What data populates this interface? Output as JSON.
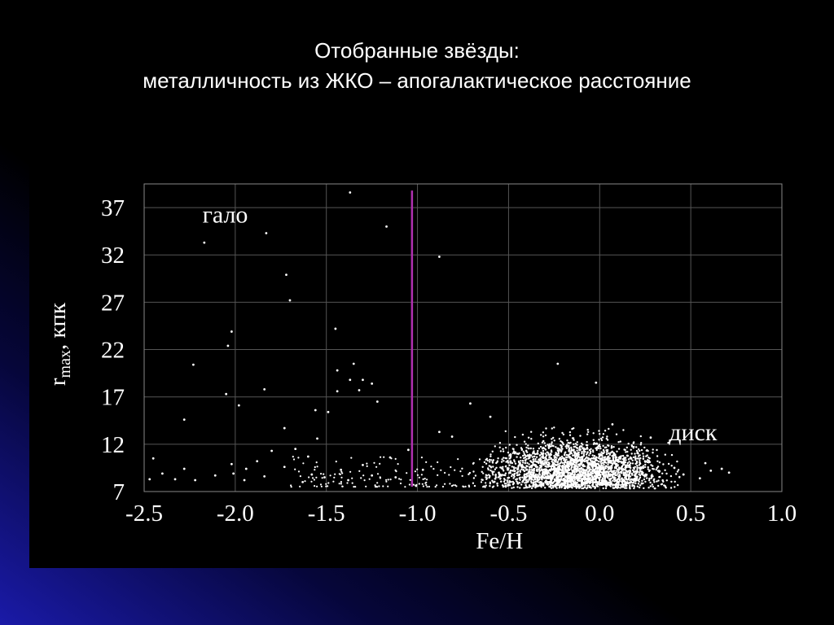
{
  "slide": {
    "title_line1": "Отобранные звёзды:",
    "title_line2": "металличность из ЖКО – апогалактическое расстояние"
  },
  "chart_data": {
    "type": "scatter",
    "xlabel": "Fe/H",
    "ylabel_main": "r",
    "ylabel_sub": "max",
    "ylabel_unit": ", кпк",
    "xlim": [
      -2.5,
      1.0
    ],
    "ylim": [
      7,
      39.5
    ],
    "x_ticks": [
      -2.5,
      -2.0,
      -1.5,
      -1.0,
      -0.5,
      0.0,
      0.5,
      1.0
    ],
    "x_tick_labels": [
      "-2.5",
      "-2.0",
      "-1.5",
      "-1.0",
      "-0.5",
      "0.0",
      "0.5",
      "1.0"
    ],
    "y_ticks": [
      7,
      12,
      17,
      22,
      27,
      32,
      37
    ],
    "y_tick_labels": [
      "7",
      "12",
      "17",
      "22",
      "27",
      "32",
      "37"
    ],
    "grid": true,
    "divider": {
      "x": -1.03,
      "y_range": [
        7.5,
        38.8
      ],
      "color": "#b030b0"
    },
    "annotations": [
      {
        "text": "гало",
        "x": -2.18,
        "y": 35.4
      },
      {
        "text": "диск",
        "x": 0.38,
        "y": 12.4
      }
    ],
    "colors": {
      "points": "#ffffff",
      "grid": "#555555",
      "background": "#000000"
    },
    "series": [
      {
        "points": [
          [
            -1.37,
            38.6
          ],
          [
            -1.17,
            35.0
          ],
          [
            -2.17,
            33.3
          ],
          [
            -1.83,
            34.3
          ],
          [
            -0.88,
            31.8
          ],
          [
            -1.72,
            29.9
          ],
          [
            -1.7,
            27.2
          ],
          [
            -1.45,
            24.2
          ],
          [
            -2.02,
            23.9
          ],
          [
            -2.04,
            22.4
          ],
          [
            -2.23,
            20.4
          ],
          [
            -1.35,
            20.5
          ],
          [
            -1.44,
            19.8
          ],
          [
            -1.37,
            18.8
          ],
          [
            -1.3,
            18.8
          ],
          [
            -1.25,
            18.4
          ],
          [
            -1.32,
            17.7
          ],
          [
            -1.44,
            17.6
          ],
          [
            -2.05,
            17.3
          ],
          [
            -1.84,
            17.8
          ],
          [
            -1.98,
            16.1
          ],
          [
            -1.22,
            16.5
          ],
          [
            -1.56,
            15.6
          ],
          [
            -1.49,
            15.4
          ],
          [
            -2.28,
            14.6
          ],
          [
            -1.73,
            13.7
          ],
          [
            -1.55,
            12.6
          ],
          [
            -0.23,
            20.5
          ],
          [
            -0.02,
            18.5
          ],
          [
            -0.71,
            16.3
          ],
          [
            -0.6,
            14.9
          ],
          [
            0.07,
            14.1
          ],
          [
            0.28,
            12.7
          ],
          [
            -0.88,
            13.3
          ],
          [
            -0.81,
            12.8
          ],
          [
            -1.05,
            11.4
          ],
          [
            -1.15,
            10.6
          ],
          [
            -1.3,
            9.8
          ],
          [
            -1.42,
            9.3
          ],
          [
            -1.6,
            10.7
          ],
          [
            -1.67,
            11.5
          ],
          [
            -1.8,
            11.3
          ],
          [
            -1.88,
            10.2
          ],
          [
            -2.02,
            9.9
          ],
          [
            -2.01,
            8.9
          ],
          [
            -2.11,
            8.7
          ],
          [
            -2.22,
            8.2
          ],
          [
            -2.33,
            8.3
          ],
          [
            -2.45,
            10.5
          ],
          [
            -2.28,
            9.4
          ],
          [
            -1.51,
            8.5
          ],
          [
            -1.63,
            8.0
          ],
          [
            -1.73,
            9.6
          ],
          [
            -1.94,
            9.4
          ],
          [
            -1.25,
            8.7
          ],
          [
            -1.12,
            8.5
          ],
          [
            -0.97,
            9.3
          ],
          [
            0.58,
            10.0
          ],
          [
            0.61,
            9.2
          ],
          [
            0.67,
            9.4
          ],
          [
            0.71,
            9.0
          ],
          [
            0.55,
            8.4
          ],
          [
            0.46,
            8.8
          ],
          [
            0.41,
            9.5
          ],
          [
            -2.47,
            8.3
          ],
          [
            -1.84,
            8.6
          ],
          [
            -1.38,
            8.2
          ],
          [
            -1.58,
            8.8
          ],
          [
            -1.95,
            8.2
          ],
          [
            -2.4,
            8.9
          ]
        ]
      }
    ]
  }
}
